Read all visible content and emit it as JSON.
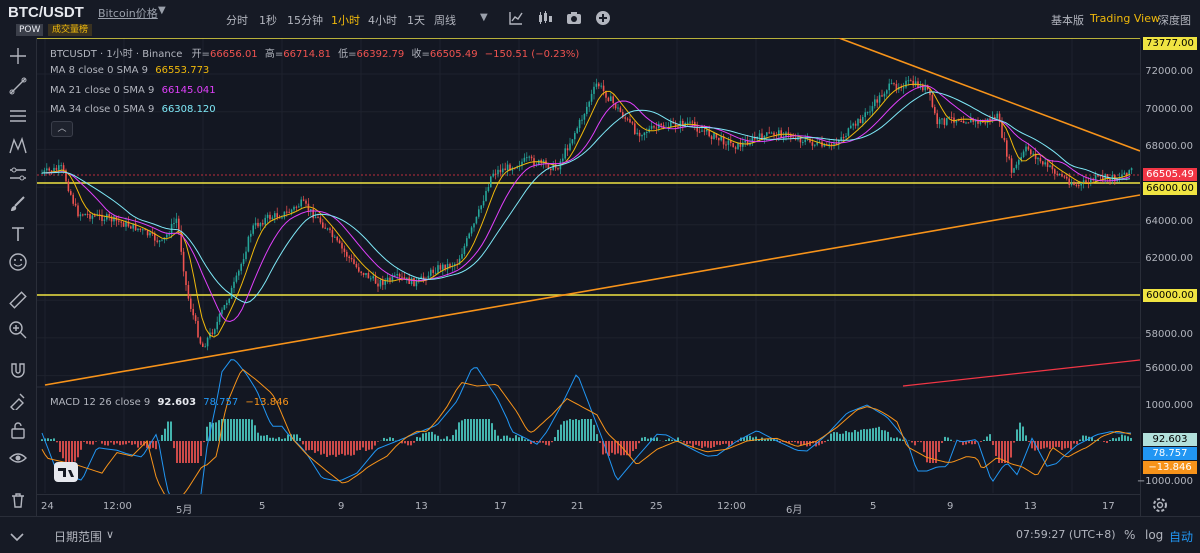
{
  "header": {
    "symbol": "BTC/USDT",
    "price_link": "Bitcoin价格",
    "badge_pow": "POW",
    "badge_volume": "成交量榜",
    "timeframes": [
      "分时",
      "1秒",
      "15分钟",
      "1小时",
      "4小时",
      "1天",
      "周线"
    ],
    "active_timeframe": "1小时",
    "views": [
      "基本版",
      "Trading View",
      "深度图"
    ],
    "active_view": "Trading View"
  },
  "chart": {
    "title": "BTCUSDT · 1小时 · Binance",
    "ohlc": {
      "open_label": "开=",
      "open": "66656.01",
      "high_label": "高=",
      "high": "66714.81",
      "low_label": "低=",
      "low": "66392.79",
      "close_label": "收=",
      "close": "66505.49",
      "change": "−150.51 (−0.23%)"
    },
    "ma": [
      {
        "label": "MA 8 close 0 SMA 9",
        "value": "66553.773",
        "color": "#f0b90b"
      },
      {
        "label": "MA 21 close 0 SMA 9",
        "value": "66145.041",
        "color": "#e040fb"
      },
      {
        "label": "MA 34 close 0 SMA 9",
        "value": "66308.120",
        "color": "#7ee8f7"
      }
    ],
    "macd": {
      "label": "MACD 12 26 close 9",
      "v1": "92.603",
      "v1_color": "#e6e8ee",
      "v2": "78.757",
      "v2_color": "#2196f3",
      "v3": "−13.846",
      "v3_color": "#f7931a"
    },
    "price_ticks": [
      "72000.00",
      "70000.00",
      "68000.00",
      "64000.00",
      "62000.00",
      "58000.00",
      "56000.00"
    ],
    "price_boxes": [
      {
        "text": "73777.00",
        "bg": "#f0e442"
      },
      {
        "text": "66505.49",
        "bg": "#f23645",
        "fg": "#ffffff"
      },
      {
        "text": "66000.00",
        "bg": "#f0e442"
      },
      {
        "text": "60000.00",
        "bg": "#f0e442"
      }
    ],
    "macd_ticks": [
      "1000.000",
      "−1000.000"
    ],
    "macd_boxes": [
      {
        "text": "92.603",
        "bg": "#b2e0dc"
      },
      {
        "text": "78.757",
        "bg": "#2196f3",
        "fg": "#ffffff"
      },
      {
        "text": "−13.846",
        "bg": "#f7931a",
        "fg": "#ffffff"
      }
    ],
    "time_ticks": [
      "24",
      "12:00",
      "5月",
      "5",
      "9",
      "13",
      "17",
      "21",
      "25",
      "12:00",
      "6月",
      "5",
      "9",
      "13",
      "17"
    ]
  },
  "footer": {
    "date_range": "日期范围",
    "clock": "07:59:27 (UTC+8)",
    "percent": "%",
    "log": "log",
    "auto": "自动"
  },
  "colors": {
    "background": "#131722",
    "up": "#26a69a",
    "down": "#ef5350",
    "support_line": "#f0e442",
    "trend_line": "#f7931a",
    "accent": "#f0b90b"
  }
}
